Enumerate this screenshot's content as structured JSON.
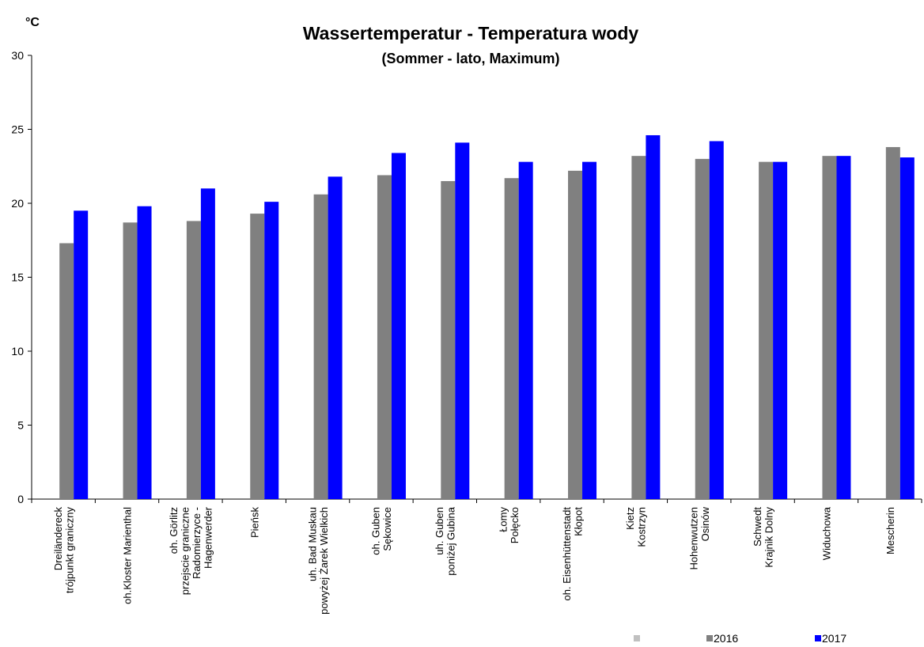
{
  "chart_data": {
    "type": "bar",
    "title": "Wassertemperatur - Temperatura wody",
    "subtitle": "(Sommer - lato, Maximum)",
    "y_label": "°C",
    "categories": [
      [
        "Dreiländereck",
        "trójpunkt graniczny"
      ],
      [
        "oh.Kloster Marienthal"
      ],
      [
        "oh. Görlitz",
        "przejscie graniczne",
        "Radomierzyce -",
        "Hagenwerder"
      ],
      [
        "Pieńsk"
      ],
      [
        "uh. Bad Muskau",
        "powyżej Żarek Wielkich"
      ],
      [
        "oh. Guben",
        "Sękowice"
      ],
      [
        "uh. Guben",
        "poniżej Gubina"
      ],
      [
        "Łomy",
        "Połęcko"
      ],
      [
        "oh. Eisenhüttenstadt",
        "Kłopot"
      ],
      [
        "Kietz",
        "Kostrzyn"
      ],
      [
        "Hohenwutzen",
        "Osinów"
      ],
      [
        "Schwedt",
        "Krajnik Dolny"
      ],
      [
        "Widuchowa"
      ],
      [
        "Mescherin"
      ]
    ],
    "series": [
      {
        "name": "2016",
        "color": "#808080",
        "values": [
          17.3,
          18.7,
          18.8,
          19.3,
          20.6,
          21.9,
          21.5,
          21.7,
          22.2,
          23.2,
          23.0,
          22.8,
          23.2,
          23.8
        ]
      },
      {
        "name": "2017",
        "color": "#0000ff",
        "values": [
          19.5,
          19.8,
          21.0,
          20.1,
          21.8,
          23.4,
          24.1,
          22.8,
          22.8,
          24.6,
          24.2,
          22.8,
          23.2,
          23.1
        ]
      }
    ],
    "ylim": [
      0,
      30
    ],
    "yticks": [
      0,
      5,
      10,
      15,
      20,
      25,
      30
    ],
    "grid": false
  }
}
